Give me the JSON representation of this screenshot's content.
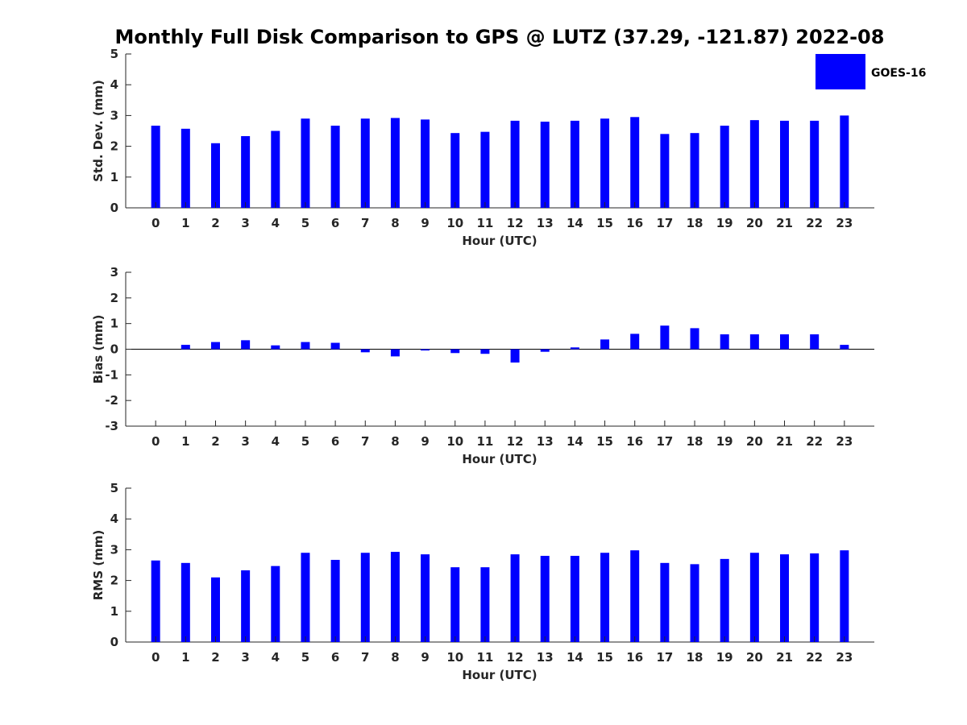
{
  "title": "Monthly Full Disk Comparison to GPS @ LUTZ (37.29, -121.87) 2022-08",
  "legend": {
    "label": "GOES-16",
    "color": "#0000ff"
  },
  "chart_data": [
    {
      "type": "bar",
      "ylabel": "Std. Dev. (mm)",
      "xlabel": "Hour (UTC)",
      "ylim": [
        0,
        5
      ],
      "yticks": [
        0,
        1,
        2,
        3,
        4,
        5
      ],
      "categories": [
        "0",
        "1",
        "2",
        "3",
        "4",
        "5",
        "6",
        "7",
        "8",
        "9",
        "10",
        "11",
        "12",
        "13",
        "14",
        "15",
        "16",
        "17",
        "18",
        "19",
        "20",
        "21",
        "22",
        "23"
      ],
      "series": [
        {
          "name": "GOES-16",
          "values": [
            2.67,
            2.57,
            2.1,
            2.33,
            2.5,
            2.9,
            2.67,
            2.9,
            2.92,
            2.87,
            2.43,
            2.47,
            2.83,
            2.8,
            2.83,
            2.9,
            2.95,
            2.4,
            2.43,
            2.67,
            2.85,
            2.83,
            2.83,
            3.0
          ]
        }
      ]
    },
    {
      "type": "bar",
      "ylabel": "Bias (mm)",
      "xlabel": "Hour (UTC)",
      "ylim": [
        -3,
        3
      ],
      "yticks": [
        -3,
        -2,
        -1,
        0,
        1,
        2,
        3
      ],
      "categories": [
        "0",
        "1",
        "2",
        "3",
        "4",
        "5",
        "6",
        "7",
        "8",
        "9",
        "10",
        "11",
        "12",
        "13",
        "14",
        "15",
        "16",
        "17",
        "18",
        "19",
        "20",
        "21",
        "22",
        "23"
      ],
      "series": [
        {
          "name": "GOES-16",
          "values": [
            0.0,
            0.17,
            0.28,
            0.35,
            0.15,
            0.28,
            0.25,
            -0.12,
            -0.28,
            -0.05,
            -0.15,
            -0.18,
            -0.52,
            -0.1,
            0.07,
            0.38,
            0.6,
            0.92,
            0.82,
            0.58,
            0.58,
            0.58,
            0.58,
            0.17
          ]
        }
      ]
    },
    {
      "type": "bar",
      "ylabel": "RMS (mm)",
      "xlabel": "Hour (UTC)",
      "ylim": [
        0,
        5
      ],
      "yticks": [
        0,
        1,
        2,
        3,
        4,
        5
      ],
      "categories": [
        "0",
        "1",
        "2",
        "3",
        "4",
        "5",
        "6",
        "7",
        "8",
        "9",
        "10",
        "11",
        "12",
        "13",
        "14",
        "15",
        "16",
        "17",
        "18",
        "19",
        "20",
        "21",
        "22",
        "23"
      ],
      "series": [
        {
          "name": "GOES-16",
          "values": [
            2.65,
            2.57,
            2.1,
            2.33,
            2.47,
            2.9,
            2.67,
            2.9,
            2.93,
            2.85,
            2.43,
            2.43,
            2.85,
            2.8,
            2.8,
            2.9,
            2.98,
            2.57,
            2.53,
            2.7,
            2.9,
            2.85,
            2.88,
            2.98
          ]
        }
      ]
    }
  ]
}
